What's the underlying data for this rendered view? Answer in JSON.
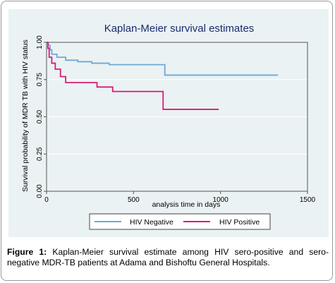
{
  "chart_data": {
    "type": "line",
    "title": "Kaplan-Meier survival estimates",
    "xlabel": "analysis time in days",
    "ylabel": "Survival probability of MDR TB with HIV status",
    "xlim": [
      0,
      1500
    ],
    "ylim": [
      0,
      1
    ],
    "x_ticks": [
      "0",
      "500",
      "1000",
      "1500"
    ],
    "y_ticks": [
      "0.00",
      "0.25",
      "0.50",
      "0.75",
      "1.00"
    ],
    "grid": true,
    "legend_position": "bottom",
    "series": [
      {
        "name": "HIV Negative",
        "color": "#6fa8d6",
        "steps": [
          [
            0,
            1.0
          ],
          [
            10,
            0.98
          ],
          [
            20,
            0.95
          ],
          [
            30,
            0.92
          ],
          [
            60,
            0.9
          ],
          [
            110,
            0.88
          ],
          [
            180,
            0.87
          ],
          [
            260,
            0.86
          ],
          [
            360,
            0.85
          ],
          [
            680,
            0.78
          ],
          [
            1330,
            0.78
          ]
        ]
      },
      {
        "name": "HIV Positive",
        "color": "#d81b78",
        "steps": [
          [
            0,
            1.0
          ],
          [
            8,
            0.96
          ],
          [
            15,
            0.9
          ],
          [
            30,
            0.86
          ],
          [
            50,
            0.82
          ],
          [
            80,
            0.77
          ],
          [
            110,
            0.73
          ],
          [
            290,
            0.7
          ],
          [
            380,
            0.67
          ],
          [
            670,
            0.55
          ],
          [
            990,
            0.55
          ]
        ]
      }
    ]
  },
  "caption": {
    "label": "Figure 1:",
    "text": "Kaplan-Meier survival estimate among HIV sero-positive and sero-negative MDR-TB patients at Adama and Bishoftu General Hospitals."
  }
}
